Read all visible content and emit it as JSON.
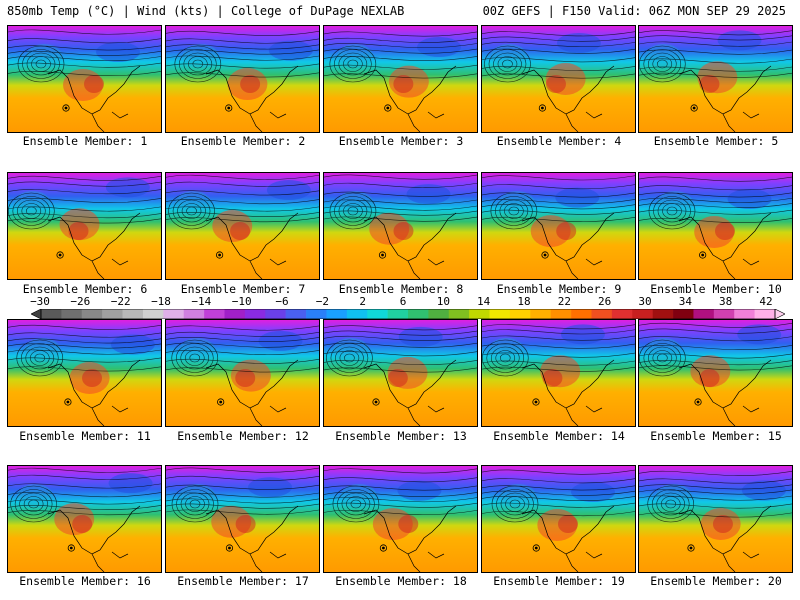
{
  "header": {
    "left": "850mb Temp (°C) | Wind (kts) | College of DuPage NEXLAB",
    "right": "00Z GEFS | F150 Valid: 06Z MON SEP 29 2025"
  },
  "members": [
    "Ensemble Member: 1",
    "Ensemble Member: 2",
    "Ensemble Member: 3",
    "Ensemble Member: 4",
    "Ensemble Member: 5",
    "Ensemble Member: 6",
    "Ensemble Member: 7",
    "Ensemble Member: 8",
    "Ensemble Member: 9",
    "Ensemble Member: 10",
    "Ensemble Member: 11",
    "Ensemble Member: 12",
    "Ensemble Member: 13",
    "Ensemble Member: 14",
    "Ensemble Member: 15",
    "Ensemble Member: 16",
    "Ensemble Member: 17",
    "Ensemble Member: 18",
    "Ensemble Member: 19",
    "Ensemble Member: 20"
  ],
  "colorbar": {
    "labels": [
      "−30",
      "−26",
      "−22",
      "−18",
      "−14",
      "−10",
      "−6",
      "−2",
      "2",
      "6",
      "10",
      "14",
      "18",
      "22",
      "26",
      "30",
      "34",
      "38",
      "42"
    ],
    "colors": [
      "#5a5a5a",
      "#707070",
      "#888888",
      "#a0a0a0",
      "#b8b8b8",
      "#d0d0d0",
      "#e0b0e8",
      "#d080e0",
      "#c040d8",
      "#a020c8",
      "#8a2be2",
      "#6a40e8",
      "#4a60f0",
      "#2a80f8",
      "#1aa0ff",
      "#10c0f0",
      "#10d8d8",
      "#20d0a0",
      "#30c070",
      "#50b040",
      "#80c020",
      "#c0d800",
      "#f0e800",
      "#ffd000",
      "#ffb000",
      "#ff9000",
      "#ff7000",
      "#f05020",
      "#e03030",
      "#c82020",
      "#a01010",
      "#800010",
      "#b01080",
      "#d040b0",
      "#f080d8",
      "#ffb0e8"
    ],
    "accent": "#000000"
  }
}
